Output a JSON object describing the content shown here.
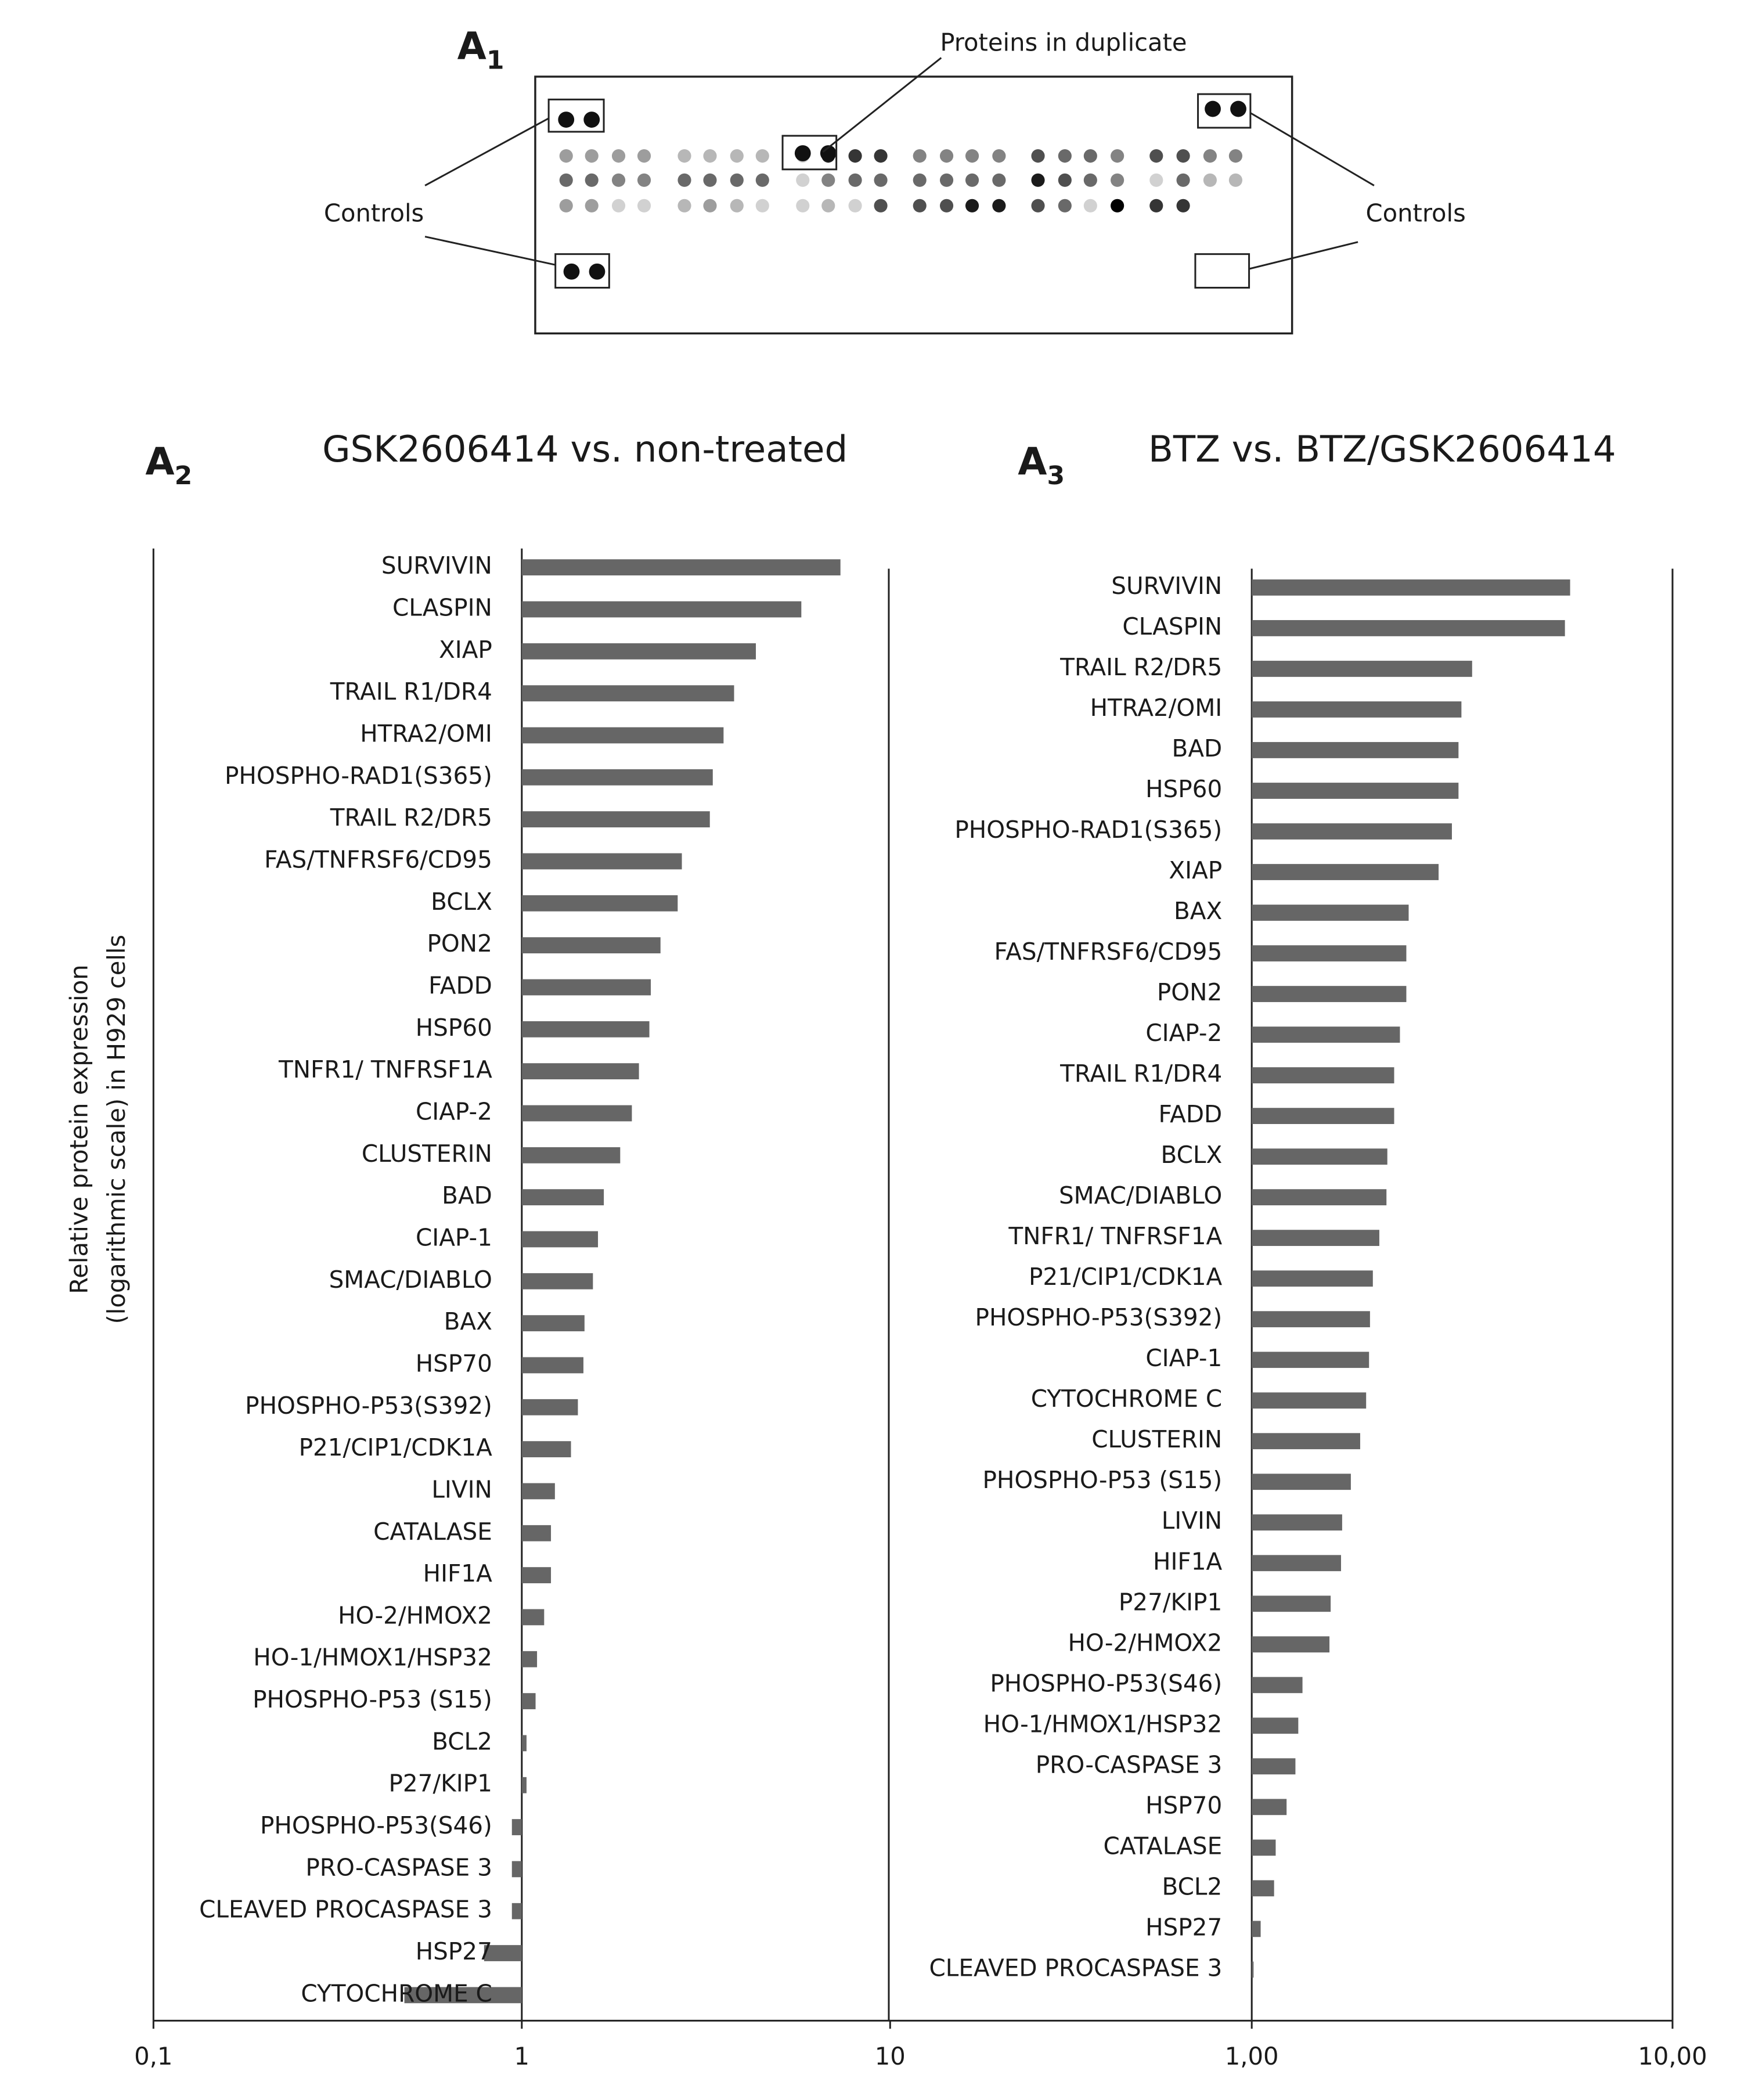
{
  "figure": {
    "panel": [
      "A",
      "1"
    ],
    "labels": {
      "controls_left": "Controls",
      "controls_right": "Controls",
      "duplicate": "Proteins in duplicate"
    }
  },
  "chart_data": [
    {
      "type": "bar",
      "panel": [
        "A",
        "2"
      ],
      "title": "GSK2606414 vs. non-treated",
      "ylabel": [
        "Relative protein expression",
        "(logarithmic scale) in H929 cells"
      ],
      "categories": [
        "SURVIVIN",
        "CLASPIN",
        "XIAP",
        "TRAIL R1/DR4",
        "HTRA2/OMI",
        "PHOSPHO-RAD1(S365)",
        "TRAIL R2/DR5",
        "FAS/TNFRSF6/CD95",
        "BCLX",
        "PON2",
        "FADD",
        "HSP60",
        "TNFR1/ TNFRSF1A",
        "CIAP-2",
        "CLUSTERIN",
        "BAD",
        "CIAP-1",
        "SMAC/DIABLO",
        "BAX",
        "HSP70",
        "PHOSPHO-P53(S392)",
        "P21/CIP1/CDK1A",
        "LIVIN",
        "CATALASE",
        "HIF1A",
        "HO-2/HMOX2",
        "HO-1/HMOX1/HSP32",
        "PHOSPHO-P53 (S15)",
        "BCL2",
        "P27/KIP1",
        "PHOSPHO-P53(S46)",
        "PRO-CASPASE 3",
        "CLEAVED PROCASPASE 3",
        "HSP27",
        "CYTOCHROME C"
      ],
      "values": [
        7.33,
        5.74,
        4.32,
        3.77,
        3.53,
        3.3,
        3.24,
        2.72,
        2.65,
        2.38,
        2.24,
        2.22,
        2.08,
        1.99,
        1.85,
        1.67,
        1.61,
        1.56,
        1.48,
        1.47,
        1.42,
        1.36,
        1.23,
        1.2,
        1.2,
        1.15,
        1.1,
        1.09,
        1.03,
        1.03,
        0.94,
        0.94,
        0.94,
        0.79,
        0.48
      ],
      "color": "#666666",
      "log_scale": true,
      "grid": false,
      "xlim": [
        0.1,
        10
      ],
      "xticks": [
        {
          "value": 0.1,
          "label": "0,1"
        },
        1,
        10
      ]
    },
    {
      "type": "bar",
      "panel": [
        "A",
        "3"
      ],
      "title": "BTZ vs. BTZ/GSK2606414",
      "categories": [
        "SURVIVIN",
        "CLASPIN",
        "TRAIL R2/DR5",
        "HTRA2/OMI",
        "BAD",
        "HSP60",
        "PHOSPHO-RAD1(S365)",
        "XIAP",
        "BAX",
        "FAS/TNFRSF6/CD95",
        "PON2",
        "CIAP-2",
        "TRAIL R1/DR4",
        "FADD",
        "BCLX",
        "SMAC/DIABLO",
        "TNFR1/ TNFRSF1A",
        "P21/CIP1/CDK1A",
        "PHOSPHO-P53(S392)",
        "CIAP-1",
        "CYTOCHROME C",
        "CLUSTERIN",
        "PHOSPHO-P53 (S15)",
        "LIVIN",
        "HIF1A",
        "P27/KIP1",
        "HO-2/HMOX2",
        "PHOSPHO-P53(S46)",
        "HO-1/HMOX1/HSP32",
        "PRO-CASPASE 3",
        "HSP70",
        "CATALASE",
        "BCL2",
        "HSP27",
        "CLEAVED PROCASPASE 3"
      ],
      "values": [
        5.71,
        5.55,
        3.34,
        3.15,
        3.1,
        3.1,
        2.99,
        2.78,
        2.36,
        2.33,
        2.33,
        2.25,
        2.18,
        2.18,
        2.1,
        2.09,
        2.01,
        1.94,
        1.91,
        1.9,
        1.87,
        1.81,
        1.72,
        1.64,
        1.63,
        1.54,
        1.53,
        1.32,
        1.29,
        1.27,
        1.21,
        1.14,
        1.13,
        1.05,
        1.01
      ],
      "color": "#666666",
      "log_scale": true,
      "grid": false,
      "xlim": [
        1,
        10
      ],
      "xticks": [
        {
          "value": 1,
          "label": "1,00"
        },
        {
          "value": 10,
          "label": "10,00"
        }
      ]
    }
  ]
}
